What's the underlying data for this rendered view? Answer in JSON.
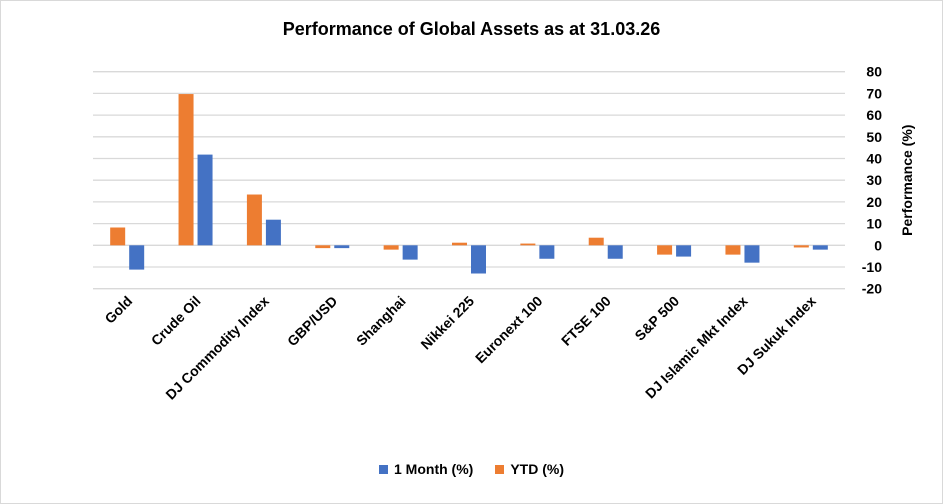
{
  "chart_data": {
    "type": "bar",
    "title": "Performance of Global Assets as at 31.03.26",
    "ylabel": "Performance (%)",
    "xlabel": "",
    "ylim": [
      -20,
      80
    ],
    "yticks": [
      80,
      70,
      60,
      50,
      40,
      30,
      20,
      10,
      0,
      -10,
      -20
    ],
    "grid": true,
    "y_axis_side": "right",
    "legend_position": "bottom",
    "categories": [
      "Gold",
      "Crude Oil",
      "DJ Commodity Index",
      "GBP/USD",
      "Shanghai",
      "Nikkei 225",
      "Euronext 100",
      "FTSE 100",
      "S&P 500",
      "DJ Islamic Mkt Index",
      "DJ Sukuk Index"
    ],
    "series": [
      {
        "name": "YTD (%)",
        "color": "#ED7D31",
        "values": [
          8.2,
          69.7,
          23.4,
          -1.3,
          -2.0,
          1.2,
          0.8,
          3.5,
          -4.3,
          -4.3,
          -1.0
        ]
      },
      {
        "name": "1 Month (%)",
        "color": "#4472C4",
        "values": [
          -11.2,
          41.8,
          11.8,
          -1.3,
          -6.6,
          -13.0,
          -6.2,
          -6.2,
          -5.2,
          -8.0,
          -2.0
        ]
      }
    ],
    "legend_order": [
      "1 Month (%)",
      "YTD (%)"
    ]
  }
}
